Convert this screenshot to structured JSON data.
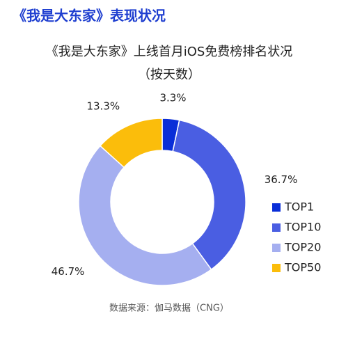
{
  "header": {
    "title": "《我是大东家》表现状况"
  },
  "chart_data": {
    "type": "pie",
    "title": "《我是大东家》上线首月iOS免费榜排名状况",
    "subtitle": "（按天数）",
    "categories": [
      "TOP1",
      "TOP10",
      "TOP20",
      "TOP50"
    ],
    "values": [
      3.3,
      36.7,
      46.7,
      13.3
    ],
    "value_labels": [
      "3.3%",
      "36.7%",
      "46.7%",
      "13.3%"
    ],
    "colors": [
      "#0a2ed8",
      "#4a5ee2",
      "#a5aff0",
      "#fbbd0b"
    ],
    "legend": "right",
    "source": "数据来源：伽马数据（CNG）"
  }
}
